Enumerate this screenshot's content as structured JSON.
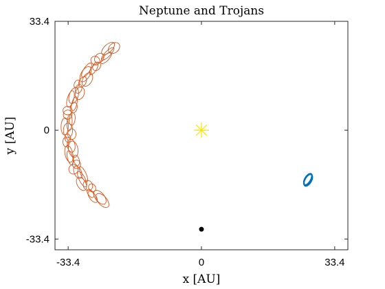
{
  "chart_data": {
    "type": "scatter",
    "title": "Neptune and Trojans",
    "xlabel": "x [AU]",
    "ylabel": "y [AU]",
    "xlim": [
      -36.7,
      36.7
    ],
    "ylim": [
      -36.7,
      33.4
    ],
    "xticks": [
      -33.4,
      0,
      33.4
    ],
    "yticks": [
      -33.4,
      0,
      33.4
    ],
    "xtick_labels": [
      "-33.4",
      "0",
      "33.4"
    ],
    "ytick_labels": [
      "-33.4",
      "0",
      "33.4"
    ],
    "grid": false,
    "legend": "none",
    "series": [
      {
        "marker": "star",
        "color": "#FFE600",
        "points": [
          [
            0,
            0
          ]
        ]
      },
      {
        "marker": "dot",
        "color": "#000000",
        "points": [
          [
            0,
            -30.4
          ]
        ]
      },
      {
        "marker": "ellipse-cluster",
        "color": "#0072BD",
        "center": [
          26.7,
          -15.2
        ],
        "radius_x": 0.7,
        "radius_y": 1.9,
        "tilt_deg": 30
      },
      {
        "marker": "ellipse-arc",
        "color": "#D95319",
        "arc_center": [
          0,
          0
        ],
        "arc_radius": 33.4,
        "arc_start_deg": 131,
        "arc_end_deg": 221,
        "ellipse_rx": 1.6,
        "ellipse_ry": 1.1,
        "count": 45
      }
    ]
  }
}
